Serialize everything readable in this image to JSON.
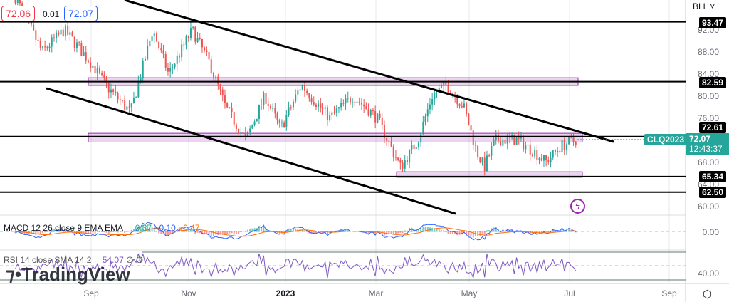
{
  "header": {
    "bid": "72.06",
    "spread": "0.01",
    "ask": "72.07",
    "bid_color": "#f23645",
    "ask_color": "#2962ff"
  },
  "scale_menu": "BLL",
  "symbol": {
    "name": "CLQ2023",
    "price": "72.07",
    "countdown": "12:43:37",
    "color": "#26a69a"
  },
  "level_labels": [
    "93.47",
    "82.59",
    "72.61",
    "65.34",
    "62.50"
  ],
  "price_ticks": [
    "92.00",
    "88.00",
    "84.00",
    "80.00",
    "76.00",
    "68.00",
    "64.00",
    "60.00"
  ],
  "time_ticks": [
    "Sep",
    "Nov",
    "2023",
    "Mar",
    "May",
    "Jul",
    "Sep"
  ],
  "macd": {
    "title": "MACD 12 26 close 9 EMA EMA",
    "hist": "0.37",
    "macd": "−0.10",
    "signal": "−0.47",
    "hist_color": "#26a69a",
    "macd_color": "#2962ff",
    "signal_color": "#ff6d00",
    "tick": "0.00"
  },
  "rsi": {
    "title": "RSI 14 close SMA 14 2",
    "value": "54.07",
    "ma": "∅",
    "extra": "∅",
    "color": "#7e57c2",
    "tick": "40.00"
  },
  "watermark": "TradingView",
  "icons": {
    "settings": "gear-hexagon-icon",
    "alert": "lightning-icon"
  },
  "chart_data": {
    "type": "candlestick",
    "title": "",
    "ylim": [
      57,
      96
    ],
    "x_range": [
      "2022-07",
      "2023-09"
    ],
    "closes": [
      [
        "2022-07-15",
        98
      ],
      [
        "2022-08-01",
        88
      ],
      [
        "2022-08-15",
        92
      ],
      [
        "2022-09-01",
        86
      ],
      [
        "2022-09-10",
        82
      ],
      [
        "2022-09-26",
        77
      ],
      [
        "2022-10-10",
        92
      ],
      [
        "2022-10-20",
        84
      ],
      [
        "2022-11-04",
        92
      ],
      [
        "2022-11-15",
        86
      ],
      [
        "2022-11-25",
        78
      ],
      [
        "2022-12-08",
        72
      ],
      [
        "2022-12-20",
        80
      ],
      [
        "2022-12-30",
        74
      ],
      [
        "2023-01-12",
        82
      ],
      [
        "2023-01-30",
        76
      ],
      [
        "2023-02-14",
        80
      ],
      [
        "2023-03-01",
        76
      ],
      [
        "2023-03-16",
        67
      ],
      [
        "2023-03-27",
        72
      ],
      [
        "2023-04-05",
        80
      ],
      [
        "2023-04-14",
        82
      ],
      [
        "2023-04-25",
        78
      ],
      [
        "2023-05-03",
        70
      ],
      [
        "2023-05-08",
        67
      ],
      [
        "2023-05-15",
        72
      ],
      [
        "2023-05-29",
        72
      ],
      [
        "2023-06-08",
        70
      ],
      [
        "2023-06-16",
        68
      ],
      [
        "2023-06-26",
        71
      ],
      [
        "2023-07-06",
        72.07
      ]
    ],
    "horizontal_levels": [
      93.47,
      82.59,
      72.61,
      65.34,
      62.5
    ],
    "zones": [
      [
        81.9,
        83.3
      ],
      [
        71.6,
        73.2
      ],
      [
        65.2,
        66.2
      ]
    ],
    "trendlines": [
      [
        [
          "2022-08-25",
          96
        ],
        [
          "2023-07-30",
          70
        ]
      ],
      [
        [
          "2022-08-01",
          83
        ],
        [
          "2023-04-30",
          59.5
        ]
      ]
    ]
  }
}
